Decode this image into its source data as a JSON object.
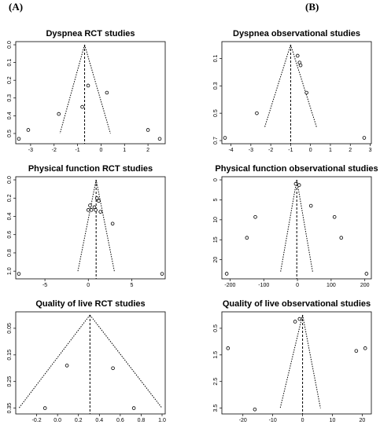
{
  "panel_labels": {
    "left": "(A)",
    "right": "(B)"
  },
  "chart_data": [
    {
      "type": "scatter",
      "title": "Dyspnea RCT studies",
      "xticks": [
        -3,
        -2,
        -1,
        0,
        1,
        2
      ],
      "yticks": [
        "0.0",
        "0.1",
        "0.2",
        "0.3",
        "0.4",
        "0.5"
      ],
      "yticks_values": [
        0.0,
        0.1,
        0.2,
        0.3,
        0.4,
        0.5
      ],
      "xlim": [
        -3.5,
        2.6
      ],
      "ylim": [
        0.0,
        0.54
      ],
      "y_reversed": true,
      "funnel": {
        "center": -0.7,
        "top_se": 0.0,
        "bottom_left": -1.75,
        "bottom_right": 0.4,
        "bottom_se": 0.5
      },
      "points": [
        {
          "x": -3.5,
          "y": 0.53
        },
        {
          "x": -3.1,
          "y": 0.48
        },
        {
          "x": -1.8,
          "y": 0.39
        },
        {
          "x": -0.8,
          "y": 0.35
        },
        {
          "x": -0.55,
          "y": 0.23
        },
        {
          "x": 0.25,
          "y": 0.27
        },
        {
          "x": 2.0,
          "y": 0.48
        },
        {
          "x": 2.5,
          "y": 0.53
        }
      ]
    },
    {
      "type": "scatter",
      "title": "Dyspnea observational studies",
      "xticks": [
        -4,
        -3,
        -2,
        -1,
        0,
        1,
        2,
        3
      ],
      "yticks": [
        "0.1",
        "0.3",
        "0.5",
        "0.7"
      ],
      "yticks_values": [
        0.1,
        0.3,
        0.5,
        0.7
      ],
      "xlim": [
        -4.3,
        2.9
      ],
      "ylim": [
        0.0,
        0.7
      ],
      "y_reversed": true,
      "funnel": {
        "center": -1.0,
        "top_se": 0.0,
        "bottom_left": -2.3,
        "bottom_right": 0.3,
        "bottom_se": 0.6
      },
      "points": [
        {
          "x": -4.3,
          "y": 0.68
        },
        {
          "x": -2.7,
          "y": 0.5
        },
        {
          "x": -0.65,
          "y": 0.08
        },
        {
          "x": -0.55,
          "y": 0.13
        },
        {
          "x": -0.5,
          "y": 0.15
        },
        {
          "x": -0.2,
          "y": 0.35
        },
        {
          "x": 2.7,
          "y": 0.68
        }
      ]
    },
    {
      "type": "scatter",
      "title": "Physical function RCT studies",
      "xticks": [
        -5,
        0,
        5
      ],
      "yticks": [
        "0.0",
        "0.2",
        "0.4",
        "0.6",
        "0.8",
        "1.0"
      ],
      "yticks_values": [
        0.0,
        0.2,
        0.4,
        0.6,
        0.8,
        1.0
      ],
      "xlim": [
        -8.0,
        8.5
      ],
      "ylim": [
        0.0,
        1.05
      ],
      "y_reversed": true,
      "funnel": {
        "center": 0.9,
        "top_se": 0.0,
        "bottom_left": -1.2,
        "bottom_right": 3.0,
        "bottom_se": 1.0
      },
      "points": [
        {
          "x": -8.0,
          "y": 1.03
        },
        {
          "x": 0.0,
          "y": 0.33
        },
        {
          "x": 0.2,
          "y": 0.28
        },
        {
          "x": 0.35,
          "y": 0.33
        },
        {
          "x": 0.7,
          "y": 0.3
        },
        {
          "x": 1.0,
          "y": 0.2
        },
        {
          "x": 1.2,
          "y": 0.23
        },
        {
          "x": 0.85,
          "y": 0.33
        },
        {
          "x": 1.4,
          "y": 0.35
        },
        {
          "x": 2.8,
          "y": 0.48
        },
        {
          "x": 8.5,
          "y": 1.03
        }
      ]
    },
    {
      "type": "scatter",
      "title": "Physical function observational studies",
      "xticks": [
        -200,
        -100,
        0,
        100,
        200
      ],
      "yticks": [
        "0",
        "5",
        "10",
        "15",
        "20"
      ],
      "yticks_values": [
        0,
        5,
        10,
        15,
        20
      ],
      "xlim": [
        -215,
        210
      ],
      "ylim": [
        0,
        24
      ],
      "y_reversed": true,
      "funnel": {
        "center": -2,
        "top_se": 0,
        "bottom_left": -50,
        "bottom_right": 45,
        "bottom_se": 23
      },
      "points": [
        {
          "x": -210,
          "y": 23.5
        },
        {
          "x": -150,
          "y": 14.5
        },
        {
          "x": -125,
          "y": 9.3
        },
        {
          "x": -5,
          "y": 1.0
        },
        {
          "x": 5,
          "y": 1.3
        },
        {
          "x": 40,
          "y": 6.5
        },
        {
          "x": 110,
          "y": 9.3
        },
        {
          "x": 130,
          "y": 14.5
        },
        {
          "x": 205,
          "y": 23.5
        }
      ]
    },
    {
      "type": "scatter",
      "title": "Quality of live RCT studies",
      "xticks": [
        "-0.2",
        "0.0",
        "0.2",
        "0.4",
        "0.6",
        "0.8",
        "1.0"
      ],
      "xticks_values": [
        -0.2,
        0.0,
        0.2,
        0.4,
        0.6,
        0.8,
        1.0
      ],
      "yticks": [
        "0.05",
        "0.15",
        "0.25",
        "0.35"
      ],
      "yticks_values": [
        0.05,
        0.15,
        0.25,
        0.35
      ],
      "xlim": [
        -0.37,
        1.0
      ],
      "ylim": [
        0.0,
        0.36
      ],
      "y_reversed": true,
      "funnel": {
        "center": 0.31,
        "top_se": 0.0,
        "bottom_left": -0.37,
        "bottom_right": 1.0,
        "bottom_se": 0.35
      },
      "points": [
        {
          "x": -0.12,
          "y": 0.35
        },
        {
          "x": 0.09,
          "y": 0.19
        },
        {
          "x": 0.53,
          "y": 0.2
        },
        {
          "x": 0.73,
          "y": 0.35
        }
      ]
    },
    {
      "type": "scatter",
      "title": "Quality of live observational studies",
      "xticks": [
        -20,
        -10,
        0,
        10,
        20
      ],
      "yticks": [
        "0.5",
        "1.5",
        "2.5",
        "3.5"
      ],
      "yticks_values": [
        0.5,
        1.5,
        2.5,
        3.5
      ],
      "xlim": [
        -26,
        22
      ],
      "ylim": [
        0.0,
        3.6
      ],
      "y_reversed": true,
      "funnel": {
        "center": 0.0,
        "top_se": 0.0,
        "bottom_left": -7.5,
        "bottom_right": 6.0,
        "bottom_se": 3.5
      },
      "points": [
        {
          "x": -25,
          "y": 1.25
        },
        {
          "x": -16,
          "y": 3.55
        },
        {
          "x": -2.5,
          "y": 0.25
        },
        {
          "x": -1.0,
          "y": 0.15
        },
        {
          "x": 18,
          "y": 1.35
        },
        {
          "x": 21,
          "y": 1.25
        }
      ]
    }
  ]
}
